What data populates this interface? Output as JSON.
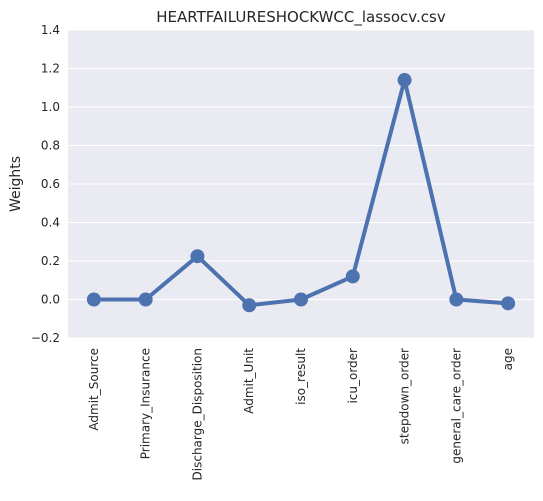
{
  "chart_data": {
    "type": "line",
    "title": "HEARTFAILURESHOCKWCC_lassocv.csv",
    "xlabel": "",
    "ylabel": "Weights",
    "categories": [
      "Admit_Source",
      "Primary_Insurance",
      "Discharge_Disposition",
      "Admit_Unit",
      "iso_result",
      "icu_order",
      "stepdown_order",
      "general_care_order",
      "age"
    ],
    "series": [
      {
        "values": [
          0.0,
          0.0,
          0.225,
          -0.03,
          0.0,
          0.12,
          1.14,
          0.0,
          -0.02
        ]
      }
    ],
    "ylim": [
      -0.2,
      1.4
    ],
    "yticks": [
      "−0.2",
      "0.0",
      "0.2",
      "0.4",
      "0.6",
      "0.8",
      "1.0",
      "1.2",
      "1.4"
    ],
    "ytick_values": [
      -0.2,
      0.0,
      0.2,
      0.4,
      0.6,
      0.8,
      1.0,
      1.2,
      1.4
    ],
    "grid": true,
    "legend": "none",
    "colors": {
      "line": "#4c72b0",
      "plot_background": "#eaeaf2",
      "grid": "#ffffff",
      "text": "#262626"
    }
  }
}
